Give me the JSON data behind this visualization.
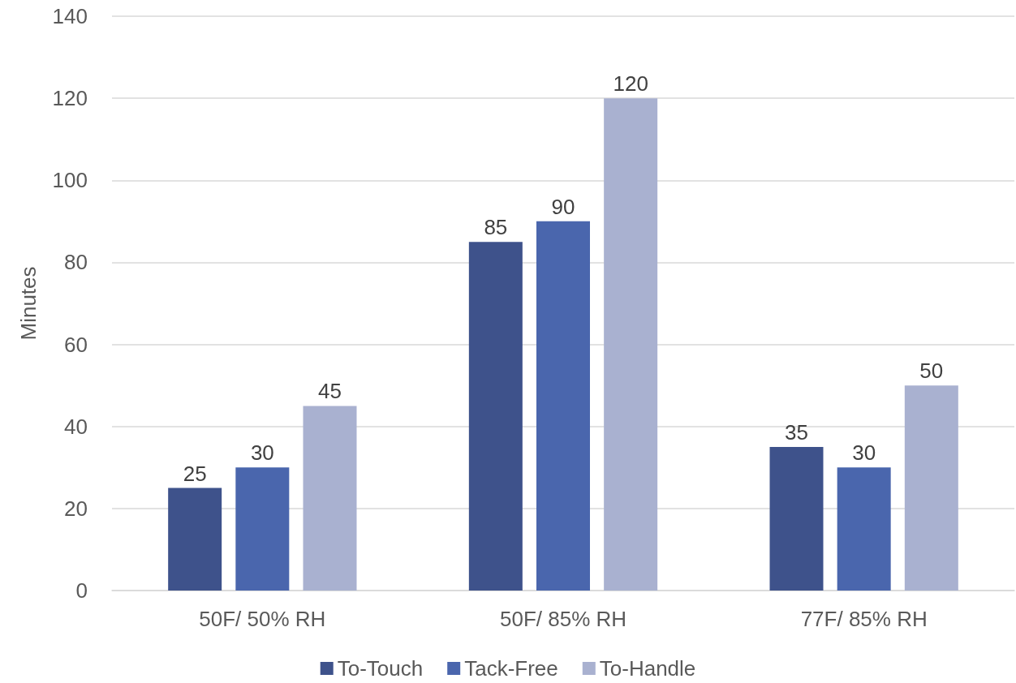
{
  "chart_data": {
    "type": "bar",
    "ylabel": "Minutes",
    "categories": [
      "50F/ 50% RH",
      "50F/ 85% RH",
      "77F/ 85% RH"
    ],
    "series": [
      {
        "name": "To-Touch",
        "color": "#3e528b",
        "values": [
          25,
          85,
          35
        ]
      },
      {
        "name": "Tack-Free",
        "color": "#4a66ad",
        "values": [
          30,
          90,
          30
        ]
      },
      {
        "name": "To-Handle",
        "color": "#a9b1d0",
        "values": [
          45,
          120,
          50
        ]
      }
    ],
    "ylim": [
      0,
      140
    ],
    "yticks": [
      0,
      20,
      40,
      60,
      80,
      100,
      120,
      140
    ],
    "grid": "y",
    "legend": "bottom",
    "data_labels": true
  }
}
